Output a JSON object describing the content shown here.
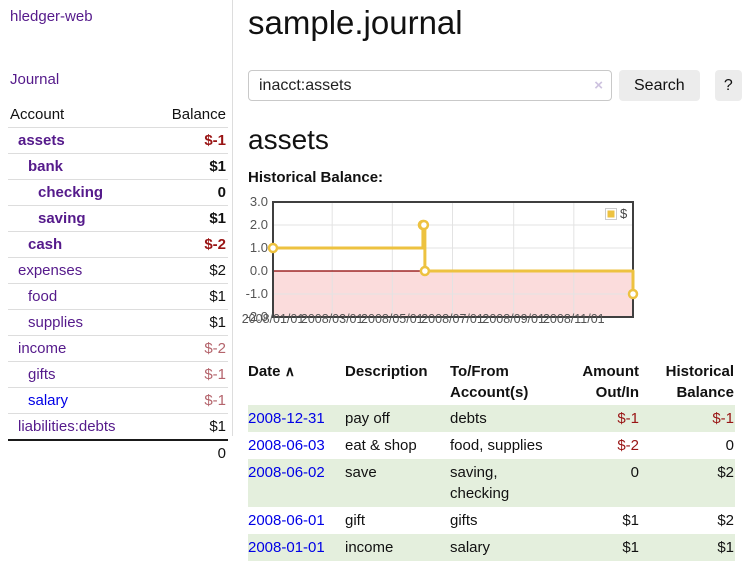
{
  "sidebar": {
    "app_title": "hledger-web",
    "nav_journal": "Journal",
    "accounts_header": {
      "account": "Account",
      "balance": "Balance"
    },
    "accounts": [
      {
        "name": "assets",
        "balance": "$-1",
        "depth": 1,
        "bold": true,
        "name_style": "purple",
        "balance_style": "negstrong"
      },
      {
        "name": "bank",
        "balance": "$1",
        "depth": 2,
        "bold": true,
        "name_style": "purple",
        "balance_style": "plain"
      },
      {
        "name": "checking",
        "balance": "0",
        "depth": 3,
        "bold": true,
        "name_style": "purple",
        "balance_style": "plain"
      },
      {
        "name": "saving",
        "balance": "$1",
        "depth": 3,
        "bold": true,
        "name_style": "purple",
        "balance_style": "plain"
      },
      {
        "name": "cash",
        "balance": "$-2",
        "depth": 2,
        "bold": true,
        "name_style": "purple",
        "balance_style": "negstrong"
      },
      {
        "name": "expenses",
        "balance": "$2",
        "depth": 1,
        "bold": false,
        "name_style": "purple",
        "balance_style": "plain"
      },
      {
        "name": "food",
        "balance": "$1",
        "depth": 2,
        "bold": false,
        "name_style": "purple",
        "balance_style": "plain"
      },
      {
        "name": "supplies",
        "balance": "$1",
        "depth": 2,
        "bold": false,
        "name_style": "purple",
        "balance_style": "plain"
      },
      {
        "name": "income",
        "balance": "$-2",
        "depth": 1,
        "bold": false,
        "name_style": "purple",
        "balance_style": "negsoft"
      },
      {
        "name": "gifts",
        "balance": "$-1",
        "depth": 2,
        "bold": false,
        "name_style": "purple",
        "balance_style": "negsoft"
      },
      {
        "name": "salary",
        "balance": "$-1",
        "depth": 2,
        "bold": false,
        "name_style": "blue",
        "balance_style": "negsoft"
      },
      {
        "name": "liabilities:debts",
        "balance": "$1",
        "depth": 1,
        "bold": false,
        "name_style": "purple",
        "balance_style": "plain"
      }
    ],
    "total": "0"
  },
  "main": {
    "title": "sample.journal",
    "search": {
      "value": "inacct:assets",
      "clear_icon": "×",
      "button": "Search",
      "help_button": "?"
    },
    "account_title": "assets",
    "chart_label": "Historical Balance:"
  },
  "chart_data": {
    "type": "line",
    "style": "step",
    "title": "Historical Balance",
    "series": [
      {
        "name": "$",
        "color": "#edc240",
        "points": [
          [
            "2008-01-01",
            1
          ],
          [
            "2008-06-01",
            2
          ],
          [
            "2008-06-02",
            2
          ],
          [
            "2008-06-03",
            0
          ],
          [
            "2008-12-31",
            -1
          ]
        ]
      }
    ],
    "x_range": [
      "2008-01-01",
      "2008-12-31"
    ],
    "ylim": [
      -2,
      3
    ],
    "y_ticks": [
      {
        "v": 3,
        "label": "3.0"
      },
      {
        "v": 2,
        "label": "2.0"
      },
      {
        "v": 1,
        "label": "1.0"
      },
      {
        "v": 0,
        "label": "0.0"
      },
      {
        "v": -1,
        "label": "-1.0"
      },
      {
        "v": -2,
        "label": "-2.0"
      }
    ],
    "x_ticks": [
      {
        "date": "2008-01-01",
        "label": "2008/01/01"
      },
      {
        "date": "2008-03-01",
        "label": "2008/03/01"
      },
      {
        "date": "2008-05-01",
        "label": "2008/05/01"
      },
      {
        "date": "2008-07-01",
        "label": "2008/07/01"
      },
      {
        "date": "2008-09-01",
        "label": "2008/09/01"
      },
      {
        "date": "2008-11-01",
        "label": "2008/11/01"
      }
    ],
    "legend_position": "top-right",
    "grid": true,
    "negative_fill": "#fbdcdc",
    "zero_line_color": "#8b0000",
    "grid_color": "#e3e3e3",
    "border_color": "#3f3f3f"
  },
  "register": {
    "headers": {
      "date": "Date",
      "date_sort_icon": "∧",
      "description": "Description",
      "tofrom": "To/From Account(s)",
      "amount": "Amount Out/In",
      "balance": "Historical Balance"
    },
    "rows": [
      {
        "date": "2008-12-31",
        "description": "pay off",
        "accounts": "debts",
        "amount": "$-1",
        "amount_neg": true,
        "balance": "$-1",
        "balance_neg": true
      },
      {
        "date": "2008-06-03",
        "description": "eat & shop",
        "accounts": "food, supplies",
        "amount": "$-2",
        "amount_neg": true,
        "balance": "0",
        "balance_neg": false
      },
      {
        "date": "2008-06-02",
        "description": "save",
        "accounts": "saving, checking",
        "amount": "0",
        "amount_neg": false,
        "balance": "$2",
        "balance_neg": false
      },
      {
        "date": "2008-06-01",
        "description": "gift",
        "accounts": "gifts",
        "amount": "$1",
        "amount_neg": false,
        "balance": "$2",
        "balance_neg": false
      },
      {
        "date": "2008-01-01",
        "description": "income",
        "accounts": "salary",
        "amount": "$1",
        "amount_neg": false,
        "balance": "$1",
        "balance_neg": false
      }
    ]
  }
}
